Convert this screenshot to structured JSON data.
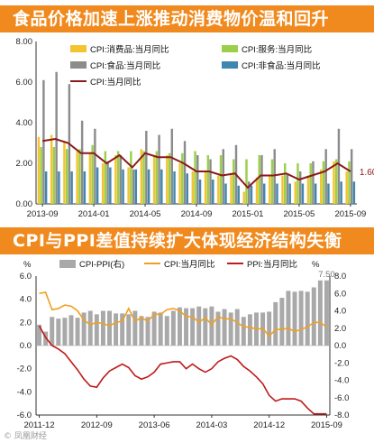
{
  "banners": {
    "top": "食品价格加速上涨推动消费物价温和回升",
    "bottom": "CPI与PPI差值持续扩大体现经济结构失衡"
  },
  "watermark": "© 凤凰财经",
  "chart_data": [
    {
      "type": "bar",
      "legend": [
        "CPI:消费品:当月同比",
        "CPI:服务:当月同比",
        "CPI:食品:当月同比",
        "CPI:非食品:当月同比",
        "CPI:当月同比"
      ],
      "colors": {
        "consumer": "#f4c430",
        "service": "#9bcf4a",
        "food": "#8c8c8c",
        "nonfood": "#3f86b0",
        "cpi": "#8b1a1a"
      },
      "ylim": [
        0,
        8
      ],
      "yticks": [
        "0.00",
        "2.00",
        "4.00",
        "6.00",
        "8.00"
      ],
      "xticks": [
        "2013-09",
        "2014-01",
        "2014-05",
        "2014-09",
        "2015-01",
        "2015-05",
        "2015-09"
      ],
      "last_label": "1.60",
      "categories": [
        "2013-09",
        "2013-10",
        "2013-11",
        "2013-12",
        "2014-01",
        "2014-02",
        "2014-03",
        "2014-04",
        "2014-05",
        "2014-06",
        "2014-07",
        "2014-08",
        "2014-09",
        "2014-10",
        "2014-11",
        "2014-12",
        "2015-01",
        "2015-02",
        "2015-03",
        "2015-04",
        "2015-05",
        "2015-06",
        "2015-07",
        "2015-08",
        "2015-09"
      ],
      "series": [
        {
          "name": "CPI:消费品:当月同比",
          "values": [
            3.3,
            3.4,
            3.1,
            2.6,
            2.5,
            2.0,
            2.4,
            1.8,
            2.7,
            2.4,
            2.4,
            2.0,
            1.6,
            1.6,
            1.4,
            1.5,
            0.6,
            1.3,
            1.4,
            1.4,
            1.1,
            1.4,
            1.7,
            2.1,
            1.6
          ]
        },
        {
          "name": "CPI:服务:当月同比",
          "values": [
            2.8,
            2.8,
            2.7,
            2.7,
            2.9,
            2.6,
            2.6,
            2.6,
            2.6,
            2.6,
            2.5,
            2.5,
            2.6,
            2.4,
            2.4,
            2.2,
            2.2,
            2.4,
            2.2,
            2.0,
            2.0,
            2.0,
            2.1,
            2.2,
            2.1
          ]
        },
        {
          "name": "CPI:食品:当月同比",
          "values": [
            6.1,
            6.5,
            5.9,
            4.1,
            3.7,
            2.1,
            2.4,
            1.7,
            3.6,
            3.4,
            3.7,
            3.1,
            2.4,
            2.2,
            2.7,
            2.9,
            1.1,
            2.4,
            2.7,
            1.5,
            1.6,
            2.1,
            2.7,
            3.7,
            2.7
          ]
        },
        {
          "name": "CPI:非食品:当月同比",
          "values": [
            1.6,
            1.6,
            1.6,
            1.6,
            1.8,
            1.8,
            1.7,
            1.7,
            1.7,
            1.7,
            1.6,
            1.5,
            1.2,
            1.2,
            1.0,
            0.9,
            0.9,
            1.0,
            1.0,
            1.0,
            1.0,
            1.0,
            1.0,
            1.1,
            1.1
          ]
        },
        {
          "name": "CPI:当月同比",
          "values": [
            3.1,
            3.2,
            3.0,
            2.5,
            2.5,
            2.0,
            2.4,
            1.8,
            2.5,
            2.3,
            2.3,
            2.0,
            1.6,
            1.6,
            1.4,
            1.5,
            0.8,
            1.4,
            1.4,
            1.5,
            1.2,
            1.4,
            1.6,
            2.0,
            1.6
          ]
        }
      ]
    },
    {
      "type": "bar",
      "legend": [
        "CPI-PPI(右)",
        "CPI:当月同比",
        "PPI:当月同比"
      ],
      "colors": {
        "diff": "#a9a9a9",
        "cpi": "#f0a020",
        "ppi": "#c01a1a"
      },
      "left_unit": "%",
      "right_unit": "%",
      "left_ylim": [
        -6,
        6
      ],
      "right_ylim": [
        -8,
        8
      ],
      "left_ticks": [
        "6.0",
        "4.0",
        "2.0",
        "0.0",
        "-2.0",
        "-4.0",
        "-6.0"
      ],
      "right_ticks": [
        "8.0",
        "6.0",
        "4.0",
        "2.0",
        "0.0",
        "-2.0",
        "-4.0",
        "-6.0",
        "-8.0"
      ],
      "xticks": [
        "2011-12",
        "2012-09",
        "2013-06",
        "2014-03",
        "2014-12",
        "2015-09"
      ],
      "last_label": "7.50",
      "months": 46,
      "series": [
        {
          "name": "CPI-PPI(右)",
          "values": [
            2.4,
            1.6,
            3.3,
            3.1,
            3.2,
            3.5,
            3.2,
            3.8,
            4.0,
            3.6,
            4.0,
            4.0,
            3.7,
            3.7,
            3.6,
            4.0,
            3.4,
            3.3,
            3.9,
            3.8,
            3.4,
            4.0,
            4.4,
            4.3,
            4.3,
            4.5,
            4.3,
            4.5,
            3.9,
            4.2,
            3.8,
            4.2,
            3.3,
            3.6,
            3.8,
            3.8,
            3.9,
            5.0,
            5.5,
            6.3,
            6.2,
            6.3,
            6.2,
            6.7,
            7.5,
            7.5
          ]
        },
        {
          "name": "CPI:当月同比",
          "values": [
            4.5,
            4.6,
            3.1,
            3.2,
            3.5,
            3.4,
            3.0,
            2.2,
            1.8,
            2.0,
            1.9,
            1.7,
            2.0,
            2.1,
            3.2,
            2.1,
            2.4,
            2.1,
            2.7,
            2.7,
            3.1,
            3.2,
            3.0,
            2.5,
            2.5,
            2.0,
            2.4,
            1.8,
            2.5,
            2.3,
            2.3,
            2.0,
            1.6,
            1.6,
            1.4,
            1.5,
            0.8,
            1.4,
            1.4,
            1.5,
            1.2,
            1.4,
            1.6,
            2.0,
            2.0,
            1.6
          ]
        },
        {
          "name": "PPI:当月同比",
          "values": [
            1.7,
            0.7,
            0.0,
            -0.3,
            -0.7,
            -1.4,
            -2.1,
            -2.9,
            -3.5,
            -3.6,
            -2.8,
            -2.2,
            -1.9,
            -1.6,
            -1.9,
            -2.6,
            -2.9,
            -2.7,
            -2.3,
            -1.6,
            -1.5,
            -1.4,
            -1.4,
            -2.0,
            -1.6,
            -2.0,
            -2.3,
            -2.0,
            -1.4,
            -1.1,
            -0.9,
            -1.2,
            -1.8,
            -2.2,
            -2.7,
            -3.3,
            -4.3,
            -4.8,
            -4.6,
            -4.6,
            -4.6,
            -4.8,
            -5.4,
            -5.9,
            -5.9,
            -5.9
          ]
        }
      ]
    }
  ]
}
